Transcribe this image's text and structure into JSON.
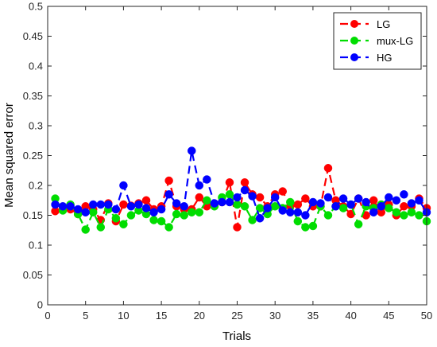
{
  "chart_data": {
    "type": "line",
    "title": "",
    "xlabel": "Trials",
    "ylabel": "Mean squared error",
    "xlim": [
      0,
      50
    ],
    "ylim": [
      0,
      0.5
    ],
    "xticks": [
      0,
      5,
      10,
      15,
      20,
      25,
      30,
      35,
      40,
      45,
      50
    ],
    "xtick_labels": [
      "0",
      "5",
      "10",
      "15",
      "20",
      "25",
      "30",
      "35",
      "40",
      "45",
      "50"
    ],
    "yticks": [
      0,
      0.05,
      0.1,
      0.15,
      0.2,
      0.25,
      0.3,
      0.35,
      0.4,
      0.45,
      0.5
    ],
    "ytick_labels": [
      "0",
      "0.05",
      "0.1",
      "0.15",
      "0.2",
      "0.25",
      "0.3",
      "0.35",
      "0.4",
      "0.45",
      "0.5"
    ],
    "grid": false,
    "legend_position": "top-right",
    "x": [
      1,
      2,
      3,
      4,
      5,
      6,
      7,
      8,
      9,
      10,
      11,
      12,
      13,
      14,
      15,
      16,
      17,
      18,
      19,
      20,
      21,
      22,
      23,
      24,
      25,
      26,
      27,
      28,
      29,
      30,
      31,
      32,
      33,
      34,
      35,
      36,
      37,
      38,
      39,
      40,
      41,
      42,
      43,
      44,
      45,
      46,
      47,
      48,
      49,
      50
    ],
    "series": [
      {
        "name": "LG",
        "color": "#ff0000",
        "line_style": "dashed",
        "marker": "circle",
        "values": [
          0.157,
          0.162,
          0.16,
          0.152,
          0.165,
          0.16,
          0.142,
          0.17,
          0.14,
          0.168,
          0.166,
          0.17,
          0.175,
          0.16,
          0.165,
          0.208,
          0.165,
          0.16,
          0.16,
          0.18,
          0.165,
          0.168,
          0.172,
          0.205,
          0.13,
          0.205,
          0.185,
          0.18,
          0.165,
          0.185,
          0.19,
          0.165,
          0.168,
          0.178,
          0.165,
          0.165,
          0.229,
          0.175,
          0.165,
          0.152,
          0.178,
          0.15,
          0.175,
          0.155,
          0.168,
          0.15,
          0.165,
          0.165,
          0.178,
          0.162
        ]
      },
      {
        "name": "mux-LG",
        "color": "#00dd00",
        "line_style": "dashed",
        "marker": "circle",
        "values": [
          0.178,
          0.158,
          0.168,
          0.152,
          0.126,
          0.155,
          0.13,
          0.16,
          0.145,
          0.135,
          0.15,
          0.158,
          0.152,
          0.142,
          0.14,
          0.13,
          0.152,
          0.15,
          0.155,
          0.155,
          0.175,
          0.165,
          0.18,
          0.185,
          0.168,
          0.165,
          0.142,
          0.162,
          0.152,
          0.165,
          0.162,
          0.172,
          0.14,
          0.13,
          0.132,
          0.165,
          0.15,
          0.165,
          0.162,
          0.168,
          0.135,
          0.165,
          0.162,
          0.168,
          0.162,
          0.155,
          0.15,
          0.155,
          0.15,
          0.14
        ]
      },
      {
        "name": "HG",
        "color": "#0000ff",
        "line_style": "dashed",
        "marker": "circle",
        "values": [
          0.168,
          0.165,
          0.165,
          0.16,
          0.155,
          0.168,
          0.168,
          0.168,
          0.16,
          0.2,
          0.165,
          0.168,
          0.162,
          0.155,
          0.16,
          0.185,
          0.17,
          0.165,
          0.258,
          0.2,
          0.21,
          0.17,
          0.172,
          0.172,
          0.18,
          0.192,
          0.182,
          0.145,
          0.162,
          0.18,
          0.158,
          0.155,
          0.155,
          0.15,
          0.172,
          0.17,
          0.18,
          0.165,
          0.178,
          0.168,
          0.178,
          0.172,
          0.155,
          0.165,
          0.18,
          0.175,
          0.185,
          0.17,
          0.175,
          0.155
        ]
      }
    ]
  }
}
